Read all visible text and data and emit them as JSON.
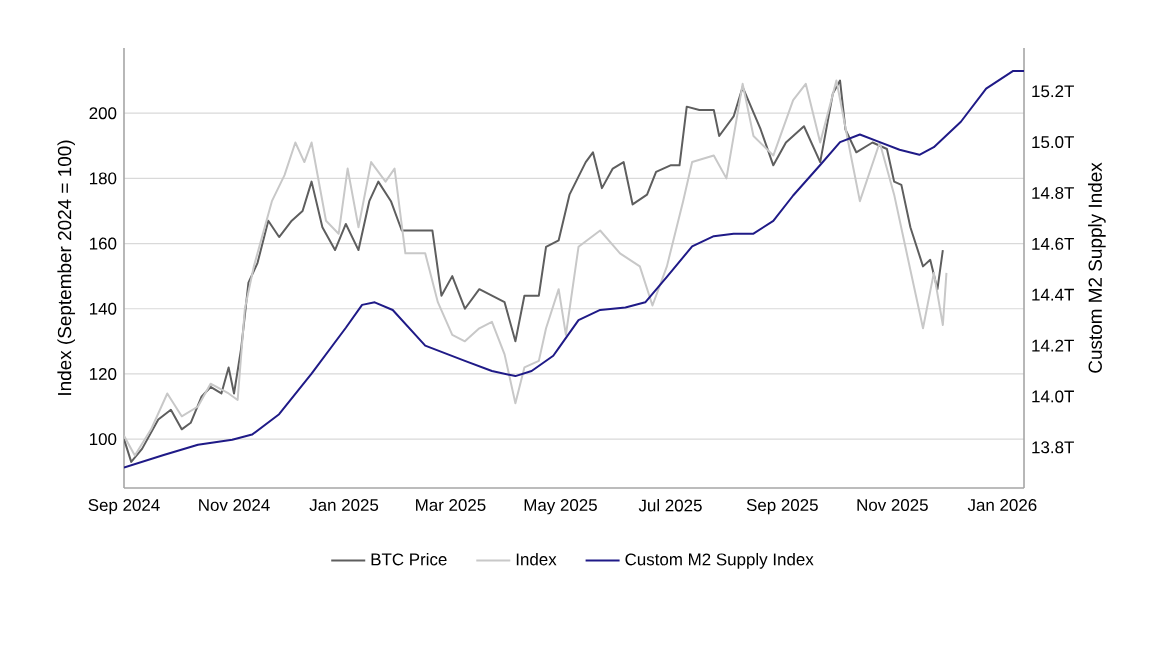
{
  "chart_data": {
    "type": "line",
    "ylabel": "Index (September 2024 = 100)",
    "y2label": "Custom M2 Supply Index",
    "xlim": [
      "2024-09-01",
      "2026-01-13"
    ],
    "xticks": [
      {
        "value": "2024-09-01",
        "label": "Sep 2024"
      },
      {
        "value": "2024-11-01",
        "label": "Nov 2024"
      },
      {
        "value": "2025-01-01",
        "label": "Jan 2025"
      },
      {
        "value": "2025-03-01",
        "label": "Mar 2025"
      },
      {
        "value": "2025-05-01",
        "label": "May 2025"
      },
      {
        "value": "2025-07-01",
        "label": "Jul 2025"
      },
      {
        "value": "2025-09-01",
        "label": "Sep 2025"
      },
      {
        "value": "2025-11-01",
        "label": "Nov 2025"
      },
      {
        "value": "2026-01-01",
        "label": "Jan 2026"
      }
    ],
    "ylim": [
      85,
      220
    ],
    "yticks": [
      100,
      120,
      140,
      160,
      180,
      200
    ],
    "y2lim": [
      13.64,
      15.37
    ],
    "y2ticks": [
      {
        "value": 13.8,
        "label": "13.8T"
      },
      {
        "value": 14.0,
        "label": "14.0T"
      },
      {
        "value": 14.2,
        "label": "14.2T"
      },
      {
        "value": 14.4,
        "label": "14.4T"
      },
      {
        "value": 14.6,
        "label": "14.6T"
      },
      {
        "value": 14.8,
        "label": "14.8T"
      },
      {
        "value": 15.0,
        "label": "15.0T"
      },
      {
        "value": 15.2,
        "label": "15.2T"
      }
    ],
    "grid": "y",
    "legend": "bottom",
    "series": [
      {
        "name": "BTC Price",
        "color": "#5e5e5e",
        "x": [
          "2024-09-01",
          "2024-09-05",
          "2024-09-11",
          "2024-09-20",
          "2024-09-27",
          "2024-10-03",
          "2024-10-08",
          "2024-10-14",
          "2024-10-19",
          "2024-10-25",
          "2024-10-29",
          "2024-11-01",
          "2024-11-05",
          "2024-11-09",
          "2024-11-14",
          "2024-11-20",
          "2024-11-26",
          "2024-12-03",
          "2024-12-09",
          "2024-12-14",
          "2024-12-20",
          "2024-12-27",
          "2025-01-02",
          "2025-01-09",
          "2025-01-15",
          "2025-01-20",
          "2025-01-27",
          "2025-02-02",
          "2025-02-09",
          "2025-02-19",
          "2025-02-24",
          "2025-03-02",
          "2025-03-09",
          "2025-03-17",
          "2025-03-24",
          "2025-03-31",
          "2025-04-06",
          "2025-04-11",
          "2025-04-19",
          "2025-04-23",
          "2025-04-30",
          "2025-05-06",
          "2025-05-15",
          "2025-05-19",
          "2025-05-24",
          "2025-05-30",
          "2025-06-05",
          "2025-06-10",
          "2025-06-18",
          "2025-06-23",
          "2025-07-01",
          "2025-07-06",
          "2025-07-10",
          "2025-07-17",
          "2025-07-25",
          "2025-07-28",
          "2025-08-05",
          "2025-08-10",
          "2025-08-20",
          "2025-08-27",
          "2025-09-03",
          "2025-09-13",
          "2025-09-22",
          "2025-09-29",
          "2025-10-03",
          "2025-10-06",
          "2025-10-12",
          "2025-10-21",
          "2025-10-29",
          "2025-11-02",
          "2025-11-06",
          "2025-11-11",
          "2025-11-18",
          "2025-11-22",
          "2025-11-26",
          "2025-11-29"
        ],
        "values": [
          100,
          93,
          97,
          106,
          109,
          103,
          105,
          113,
          116,
          114,
          122,
          114,
          128,
          148,
          154,
          167,
          162,
          167,
          170,
          179,
          165,
          158,
          166,
          158,
          173,
          179,
          173,
          164,
          164,
          164,
          144,
          150,
          140,
          146,
          144,
          142,
          130,
          144,
          144,
          159,
          161,
          175,
          185,
          188,
          177,
          183,
          185,
          172,
          175,
          182,
          184,
          184,
          202,
          201,
          201,
          193,
          199,
          208,
          195,
          184,
          191,
          196,
          185,
          206,
          210,
          195,
          188,
          191,
          189,
          179,
          178,
          165,
          153,
          155,
          146,
          158
        ]
      },
      {
        "name": "Index",
        "color": "#c8c8c8",
        "x": [
          "2024-09-01",
          "2024-09-07",
          "2024-09-16",
          "2024-09-25",
          "2024-10-03",
          "2024-10-12",
          "2024-10-19",
          "2024-10-29",
          "2024-11-03",
          "2024-11-07",
          "2024-11-12",
          "2024-11-22",
          "2024-11-29",
          "2024-12-05",
          "2024-12-10",
          "2024-12-14",
          "2024-12-22",
          "2024-12-29",
          "2025-01-03",
          "2025-01-09",
          "2025-01-16",
          "2025-01-24",
          "2025-01-29",
          "2025-02-04",
          "2025-02-15",
          "2025-02-22",
          "2025-03-02",
          "2025-03-09",
          "2025-03-17",
          "2025-03-24",
          "2025-03-31",
          "2025-04-06",
          "2025-04-11",
          "2025-04-19",
          "2025-04-23",
          "2025-04-30",
          "2025-05-04",
          "2025-05-11",
          "2025-05-23",
          "2025-06-03",
          "2025-06-14",
          "2025-06-21",
          "2025-06-29",
          "2025-07-08",
          "2025-07-13",
          "2025-07-25",
          "2025-08-01",
          "2025-08-10",
          "2025-08-16",
          "2025-08-27",
          "2025-09-07",
          "2025-09-14",
          "2025-09-22",
          "2025-10-01",
          "2025-10-09",
          "2025-10-14",
          "2025-10-25",
          "2025-11-02",
          "2025-11-09",
          "2025-11-18",
          "2025-11-24",
          "2025-11-29",
          "2025-12-01"
        ],
        "values": [
          101,
          95,
          103,
          114,
          107,
          110,
          117,
          114,
          112,
          140,
          153,
          173,
          181,
          191,
          185,
          191,
          167,
          163,
          183,
          165,
          185,
          179,
          183,
          157,
          157,
          142,
          132,
          130,
          134,
          136,
          126,
          111,
          122,
          124,
          134,
          146,
          132,
          159,
          164,
          157,
          153,
          141,
          153,
          173,
          185,
          187,
          180,
          209,
          193,
          187,
          204,
          209,
          191,
          210,
          187,
          173,
          191,
          175,
          157,
          134,
          151,
          135,
          151
        ]
      },
      {
        "name": "Custom M2 Supply Index",
        "color": "#1f1a87",
        "axis": "y2",
        "x": [
          "2024-09-01",
          "2024-09-23",
          "2024-10-12",
          "2024-10-31",
          "2024-11-11",
          "2024-11-26",
          "2024-12-14",
          "2025-01-02",
          "2025-01-11",
          "2025-01-18",
          "2025-01-28",
          "2025-02-15",
          "2025-03-09",
          "2025-03-24",
          "2025-04-06",
          "2025-04-15",
          "2025-04-27",
          "2025-04-30",
          "2025-05-11",
          "2025-05-23",
          "2025-06-06",
          "2025-06-17",
          "2025-06-29",
          "2025-07-13",
          "2025-07-25",
          "2025-08-05",
          "2025-08-16",
          "2025-08-27",
          "2025-09-07",
          "2025-09-22",
          "2025-10-03",
          "2025-10-14",
          "2025-10-25",
          "2025-11-05",
          "2025-11-16",
          "2025-11-24",
          "2025-12-09",
          "2025-12-23",
          "2026-01-07",
          "2026-01-13"
        ],
        "values": [
          13.72,
          13.77,
          13.81,
          13.83,
          13.85,
          13.93,
          14.09,
          14.27,
          14.36,
          14.37,
          14.34,
          14.2,
          14.14,
          14.1,
          14.08,
          14.1,
          14.16,
          14.19,
          14.3,
          14.34,
          14.35,
          14.37,
          14.47,
          14.59,
          14.63,
          14.64,
          14.64,
          14.69,
          14.79,
          14.91,
          15.0,
          15.03,
          15.0,
          14.97,
          14.95,
          14.98,
          15.08,
          15.21,
          15.28,
          15.28
        ]
      }
    ]
  }
}
